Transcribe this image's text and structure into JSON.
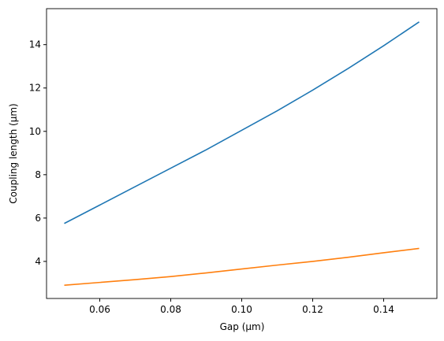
{
  "chart_data": {
    "type": "line",
    "x_label": "Gap (µm)",
    "y_label": "Coupling length (µm)",
    "x": [
      0.05,
      0.06,
      0.07,
      0.08,
      0.09,
      0.1,
      0.11,
      0.12,
      0.13,
      0.14,
      0.15
    ],
    "series": [
      {
        "color": "#1f77b4",
        "values": [
          5.75,
          6.6,
          7.45,
          8.3,
          9.15,
          10.05,
          10.95,
          11.9,
          12.9,
          13.95,
          15.05
        ]
      },
      {
        "color": "#ff7f0e",
        "values": [
          2.9,
          3.03,
          3.16,
          3.3,
          3.47,
          3.65,
          3.83,
          4.0,
          4.19,
          4.4,
          4.6
        ]
      }
    ],
    "xlim": [
      0.045,
      0.155
    ],
    "xticks": [
      0.06,
      0.08,
      {
        "value": 0.1,
        "label": "0.10"
      },
      0.12,
      0.14
    ],
    "ylim": [
      2.29,
      15.66
    ],
    "yticks": [
      4,
      6,
      8,
      10,
      12,
      14
    ]
  }
}
